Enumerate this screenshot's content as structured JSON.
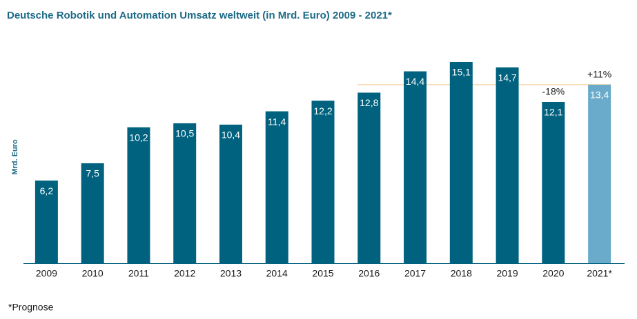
{
  "chart_data": {
    "type": "bar",
    "title": "Deutsche Robotik und Automation Umsatz weltweit (in Mrd. Euro) 2009 - 2021*",
    "y_label": "Mrd. Euro",
    "categories": [
      "2009",
      "2010",
      "2011",
      "2012",
      "2013",
      "2014",
      "2015",
      "2016",
      "2017",
      "2018",
      "2019",
      "2020",
      "2021*"
    ],
    "values": [
      6.2,
      7.5,
      10.2,
      10.5,
      10.4,
      11.4,
      12.2,
      12.8,
      14.4,
      15.1,
      14.7,
      12.1,
      13.4
    ],
    "value_labels": [
      "6,2",
      "7,5",
      "10,2",
      "10,5",
      "10,4",
      "11,4",
      "12,2",
      "12,8",
      "14,4",
      "15,1",
      "14,7",
      "12,1",
      "13,4"
    ],
    "colors": [
      "#00627f",
      "#00627f",
      "#00627f",
      "#00627f",
      "#00627f",
      "#00627f",
      "#00627f",
      "#00627f",
      "#00627f",
      "#00627f",
      "#00627f",
      "#00627f",
      "#6aabcc"
    ],
    "ylim": [
      0,
      16
    ],
    "reference_line": {
      "value": 13.4,
      "color": "#f7cf9c"
    },
    "annotations": [
      {
        "text": "-18%",
        "category": "2020"
      },
      {
        "text": "+11%",
        "category": "2021*"
      }
    ],
    "footnote": "*Prognose"
  }
}
